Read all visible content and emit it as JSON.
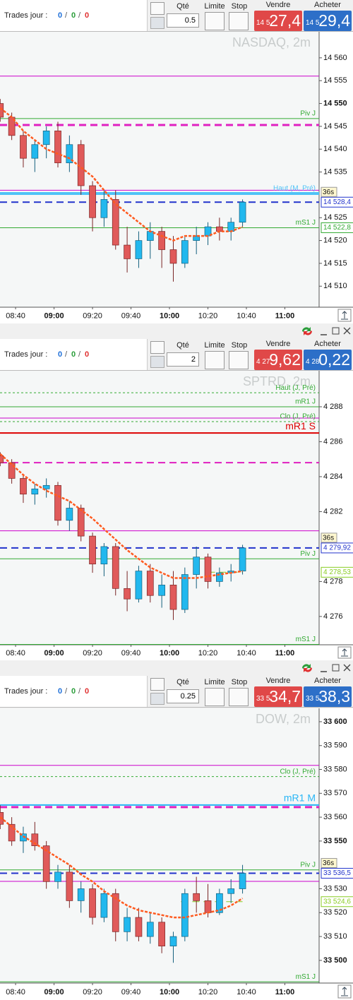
{
  "panels": [
    {
      "trades_label": "Trades jour :",
      "trades": [
        "0",
        "0",
        "0"
      ],
      "separator": "/",
      "qty_label": "Qté",
      "qty": "0.5",
      "limit_label": "Limite",
      "stop_label": "Stop",
      "sell_label": "Vendre",
      "sell_prefix": "14 5",
      "sell_price": "27,4",
      "buy_label": "Acheter",
      "buy_prefix": "14 5",
      "buy_price": "29,4"
    },
    {
      "trades_label": "Trades jour :",
      "trades": [
        "0",
        "0",
        "0"
      ],
      "separator": "/",
      "qty_label": "Qté",
      "qty": "2",
      "limit_label": "Limite",
      "stop_label": "Stop",
      "sell_label": "Vendre",
      "sell_prefix": "4 27",
      "sell_price": "9,62",
      "buy_label": "Acheter",
      "buy_prefix": "4 28",
      "buy_price": "0,22"
    },
    {
      "trades_label": "Trades jour :",
      "trades": [
        "0",
        "0",
        "0"
      ],
      "separator": "/",
      "qty_label": "Qté",
      "qty": "0.25",
      "limit_label": "Limite",
      "stop_label": "Stop",
      "sell_label": "Vendre",
      "sell_prefix": "33 5",
      "sell_price": "34,7",
      "buy_label": "Acheter",
      "buy_prefix": "33 5",
      "buy_price": "38,3"
    }
  ],
  "chart_data": [
    {
      "type": "candlestick",
      "title": "NASDAQ, 2m",
      "up_color": "#22b8ee",
      "down_color": "#e05a5a",
      "ma_color": "#ff5a1f",
      "xlim": [
        511.9,
        677.8
      ],
      "xticks": [
        {
          "value": 520,
          "label": "08:40"
        },
        {
          "value": 540,
          "label": "09:00",
          "bold": true
        },
        {
          "value": 560,
          "label": "09:20"
        },
        {
          "value": 580,
          "label": "09:40"
        },
        {
          "value": 600,
          "label": "10:00",
          "bold": true
        },
        {
          "value": 620,
          "label": "10:20"
        },
        {
          "value": 640,
          "label": "10:40"
        },
        {
          "value": 660,
          "label": "11:00",
          "bold": true
        }
      ],
      "ylim": [
        14505.4,
        14565.7
      ],
      "yticks": [
        {
          "value": 14560,
          "label": "14 560"
        },
        {
          "value": 14555,
          "label": "14 555"
        },
        {
          "value": 14550,
          "label": "14 550",
          "bold": true
        },
        {
          "value": 14545,
          "label": "14 545"
        },
        {
          "value": 14540,
          "label": "14 540"
        },
        {
          "value": 14535,
          "label": "14 535"
        },
        {
          "value": 14525,
          "label": "14 525"
        },
        {
          "value": 14520,
          "label": "14 520"
        },
        {
          "value": 14515,
          "label": "14 515"
        },
        {
          "value": 14510,
          "label": "14 510"
        }
      ],
      "x": [
        512,
        518,
        524,
        530,
        536,
        542,
        548,
        554,
        560,
        566,
        572,
        578,
        584,
        590,
        596,
        602,
        608,
        614,
        620,
        626,
        632,
        638
      ],
      "candles": [
        [
          14550,
          14551,
          14546,
          14547
        ],
        [
          14547,
          14548,
          14542,
          14543
        ],
        [
          14543,
          14544,
          14536,
          14538
        ],
        [
          14538,
          14542,
          14535,
          14541
        ],
        [
          14541,
          14545,
          14538,
          14544
        ],
        [
          14544,
          14546,
          14536,
          14537
        ],
        [
          14537,
          14543,
          14535,
          14541
        ],
        [
          14541,
          14542,
          14530,
          14532
        ],
        [
          14532,
          14533,
          14522,
          14525
        ],
        [
          14525,
          14531,
          14523,
          14529
        ],
        [
          14529,
          14531,
          14518,
          14519
        ],
        [
          14519,
          14523,
          14513,
          14516
        ],
        [
          14516,
          14522,
          14514,
          14520
        ],
        [
          14520,
          14524,
          14516,
          14522
        ],
        [
          14522,
          14523,
          14514,
          14518
        ],
        [
          14518,
          14521,
          14511,
          14515
        ],
        [
          14515,
          14521,
          14514,
          14520
        ],
        [
          14520,
          14523,
          14517,
          14521
        ],
        [
          14521,
          14524,
          14519,
          14523
        ],
        [
          14523,
          14525,
          14520,
          14522
        ],
        [
          14522,
          14525,
          14520,
          14524
        ],
        [
          14524,
          14529,
          14523,
          14528.4
        ]
      ],
      "ma": [
        14549,
        14547,
        14544,
        14542,
        14540,
        14539,
        14538,
        14536,
        14534,
        14531,
        14528,
        14526,
        14524,
        14522,
        14521,
        14520,
        14521,
        14521,
        14521,
        14522,
        14522,
        14523
      ],
      "levels": [
        {
          "value": 14556,
          "color": "#cc00cc",
          "style": "solid"
        },
        {
          "value": 14546.7,
          "color": "#33aa33",
          "style": "solid",
          "label": "Piv J"
        },
        {
          "value": 14545.3,
          "color": "#e020c0",
          "style": "dashed",
          "width": 3
        },
        {
          "value": 14531,
          "color": "#cc00cc",
          "style": "solid"
        },
        {
          "value": 14530.3,
          "color": "#4fc3f7",
          "style": "solid",
          "width": 4,
          "label": "Haut (M, Pré)"
        },
        {
          "value": 14528.4,
          "color": "#2233cc",
          "style": "dashed",
          "width": 2,
          "tag": "14 528,4",
          "timer": "36s"
        },
        {
          "value": 14522.8,
          "color": "#33aa33",
          "style": "solid",
          "label": "mS1 J",
          "tag": "14 522,8"
        }
      ]
    },
    {
      "type": "candlestick",
      "title": "SPTRD, 2m",
      "up_color": "#22b8ee",
      "down_color": "#e05a5a",
      "ma_color": "#ff5a1f",
      "xlim": [
        511.9,
        677.8
      ],
      "xticks": [
        {
          "value": 520,
          "label": "08:40"
        },
        {
          "value": 540,
          "label": "09:00",
          "bold": true
        },
        {
          "value": 560,
          "label": "09:20"
        },
        {
          "value": 580,
          "label": "09:40"
        },
        {
          "value": 600,
          "label": "10:00",
          "bold": true
        },
        {
          "value": 620,
          "label": "10:20"
        },
        {
          "value": 640,
          "label": "10:40"
        },
        {
          "value": 660,
          "label": "11:00",
          "bold": true
        }
      ],
      "ylim": [
        4274.38,
        4290.06
      ],
      "yticks": [
        {
          "value": 4288,
          "label": "4 288"
        },
        {
          "value": 4286,
          "label": "4 286"
        },
        {
          "value": 4284,
          "label": "4 284"
        },
        {
          "value": 4282,
          "label": "4 282"
        },
        {
          "value": 4278,
          "label": "4 278"
        },
        {
          "value": 4276,
          "label": "4 276"
        }
      ],
      "x": [
        512,
        518,
        524,
        530,
        536,
        542,
        548,
        554,
        560,
        566,
        572,
        578,
        584,
        590,
        596,
        602,
        608,
        614,
        620,
        626,
        632,
        638
      ],
      "candles": [
        [
          4285.2,
          4285.4,
          4284.6,
          4284.8
        ],
        [
          4284.8,
          4285.0,
          4283.6,
          4283.9
        ],
        [
          4283.9,
          4284.1,
          4282.5,
          4283.0
        ],
        [
          4283.0,
          4283.6,
          4282.4,
          4283.3
        ],
        [
          4283.3,
          4283.9,
          4282.8,
          4283.5
        ],
        [
          4283.5,
          4283.7,
          4281.2,
          4281.5
        ],
        [
          4281.5,
          4282.6,
          4280.9,
          4282.2
        ],
        [
          4282.2,
          4282.4,
          4280.3,
          4280.6
        ],
        [
          4280.6,
          4280.8,
          4278.5,
          4279.0
        ],
        [
          4279.0,
          4280.2,
          4278.3,
          4280.0
        ],
        [
          4280.0,
          4280.2,
          4277.2,
          4277.6
        ],
        [
          4277.6,
          4278.6,
          4276.3,
          4277.0
        ],
        [
          4277.0,
          4278.9,
          4276.8,
          4278.6
        ],
        [
          4278.6,
          4279.0,
          4276.8,
          4277.2
        ],
        [
          4277.2,
          4278.4,
          4276.5,
          4277.8
        ],
        [
          4277.8,
          4278.6,
          4275.8,
          4276.4
        ],
        [
          4276.4,
          4278.8,
          4276.2,
          4278.4
        ],
        [
          4278.4,
          4280.0,
          4277.6,
          4279.4
        ],
        [
          4279.4,
          4279.6,
          4277.6,
          4278.0
        ],
        [
          4278.0,
          4278.8,
          4277.7,
          4278.5
        ],
        [
          4278.5,
          4279.0,
          4278.0,
          4278.6
        ],
        [
          4278.6,
          4280.1,
          4278.4,
          4279.92
        ]
      ],
      "ma": [
        4285.3,
        4284.7,
        4284.1,
        4283.6,
        4283.2,
        4282.9,
        4282.6,
        4282.1,
        4281.6,
        4281.0,
        4280.4,
        4279.8,
        4279.3,
        4278.8,
        4278.5,
        4278.2,
        4278.2,
        4278.2,
        4278.3,
        4278.4,
        4278.5,
        4278.6
      ],
      "levels": [
        {
          "value": 4288.8,
          "color": "#33aa33",
          "style": "dotted",
          "label": "Haut (J, Pré)"
        },
        {
          "value": 4288.0,
          "color": "#33aa33",
          "style": "solid",
          "label": "mR1 J"
        },
        {
          "value": 4287.35,
          "color": "#cc00cc",
          "style": "solid"
        },
        {
          "value": 4287.15,
          "color": "#33aa33",
          "style": "dotted",
          "label": "Clo (J, Pré)"
        },
        {
          "value": 4286.5,
          "color": "#dd0000",
          "style": "solid",
          "width": 2,
          "label": "mR1 S",
          "big": true
        },
        {
          "value": 4284.8,
          "color": "#e020c0",
          "style": "dashed",
          "width": 2
        },
        {
          "value": 4280.9,
          "color": "#cc00cc",
          "style": "solid"
        },
        {
          "value": 4279.92,
          "color": "#2233cc",
          "style": "dashed",
          "width": 2,
          "tag": "4 279,92",
          "timer": "36s"
        },
        {
          "value": 4279.3,
          "color": "#33aa33",
          "style": "solid",
          "label": "Piv J"
        },
        {
          "value": 4278.53,
          "color": "#88cc22",
          "style": "dashed",
          "x_from": 620,
          "tag": "4 278,53"
        },
        {
          "value": 4274.4,
          "color": "#33aa33",
          "style": "solid",
          "label": "mS1 J"
        }
      ]
    },
    {
      "type": "candlestick",
      "title": "DOW, 2m",
      "up_color": "#22b8ee",
      "down_color": "#e05a5a",
      "ma_color": "#ff5a1f",
      "xlim": [
        511.9,
        677.8
      ],
      "xticks": [
        {
          "value": 520,
          "label": "08:40"
        },
        {
          "value": 540,
          "label": "09:00",
          "bold": true
        },
        {
          "value": 560,
          "label": "09:20"
        },
        {
          "value": 580,
          "label": "09:40"
        },
        {
          "value": 600,
          "label": "10:00",
          "bold": true
        },
        {
          "value": 620,
          "label": "10:20"
        },
        {
          "value": 640,
          "label": "10:40"
        },
        {
          "value": 660,
          "label": "11:00",
          "bold": true
        }
      ],
      "ylim": [
        33490.5,
        33605.6
      ],
      "yticks": [
        {
          "value": 33600,
          "label": "33 600",
          "bold": true
        },
        {
          "value": 33590,
          "label": "33 590"
        },
        {
          "value": 33580,
          "label": "33 580"
        },
        {
          "value": 33570,
          "label": "33 570"
        },
        {
          "value": 33560,
          "label": "33 560"
        },
        {
          "value": 33550,
          "label": "33 550",
          "bold": true
        },
        {
          "value": 33530,
          "label": "33 530"
        },
        {
          "value": 33520,
          "label": "33 520"
        },
        {
          "value": 33510,
          "label": "33 510"
        },
        {
          "value": 33500,
          "label": "33 500",
          "bold": true
        }
      ],
      "x": [
        512,
        518,
        524,
        530,
        536,
        542,
        548,
        554,
        560,
        566,
        572,
        578,
        584,
        590,
        596,
        602,
        608,
        614,
        620,
        626,
        632,
        638
      ],
      "candles": [
        [
          33562,
          33565,
          33555,
          33557
        ],
        [
          33557,
          33560,
          33548,
          33550
        ],
        [
          33550,
          33556,
          33545,
          33553
        ],
        [
          33553,
          33558,
          33546,
          33548
        ],
        [
          33548,
          33550,
          33530,
          33533
        ],
        [
          33533,
          33540,
          33530,
          33537
        ],
        [
          33537,
          33540,
          33522,
          33525
        ],
        [
          33525,
          33533,
          33520,
          33530
        ],
        [
          33530,
          33532,
          33515,
          33518
        ],
        [
          33518,
          33530,
          33516,
          33528
        ],
        [
          33528,
          33530,
          33508,
          33512
        ],
        [
          33512,
          33522,
          33508,
          33518
        ],
        [
          33518,
          33522,
          33508,
          33510
        ],
        [
          33510,
          33520,
          33507,
          33516
        ],
        [
          33516,
          33518,
          33503,
          33506
        ],
        [
          33506,
          33512,
          33499,
          33510
        ],
        [
          33510,
          33530,
          33508,
          33528
        ],
        [
          33528,
          33535,
          33520,
          33525
        ],
        [
          33525,
          33532,
          33518,
          33520
        ],
        [
          33520,
          33530,
          33519,
          33528
        ],
        [
          33528,
          33534,
          33524,
          33530
        ],
        [
          33530,
          33540,
          33528,
          33536.5
        ]
      ],
      "ma": [
        33560,
        33556,
        33552,
        33549,
        33546,
        33543,
        33540,
        33536,
        33533,
        33529,
        33526,
        33523,
        33521,
        33520,
        33519,
        33518,
        33518,
        33519,
        33520,
        33521,
        33523,
        33526
      ],
      "levels": [
        {
          "value": 33581.7,
          "color": "#cc00cc",
          "style": "solid"
        },
        {
          "value": 33577,
          "color": "#33aa33",
          "style": "dotted",
          "label": "Clo (J, Pré)"
        },
        {
          "value": 33565.1,
          "color": "#29b6f6",
          "style": "solid",
          "width": 2,
          "label": "mR1 M",
          "big": true
        },
        {
          "value": 33564.2,
          "color": "#e020c0",
          "style": "dashed",
          "width": 3
        },
        {
          "value": 33537.9,
          "color": "#33aa33",
          "style": "solid",
          "label": "Piv J"
        },
        {
          "value": 33536.5,
          "color": "#2233cc",
          "style": "dashed",
          "width": 2,
          "tag": "33 536,5",
          "timer": "36s"
        },
        {
          "value": 33533.1,
          "color": "#cc00cc",
          "style": "solid"
        },
        {
          "value": 33524.6,
          "color": "#88cc22",
          "style": "dashed",
          "x_from": 606,
          "tag": "33 524,6"
        },
        {
          "value": 33491,
          "color": "#33aa33",
          "style": "solid",
          "label": "mS1 J"
        }
      ]
    }
  ]
}
